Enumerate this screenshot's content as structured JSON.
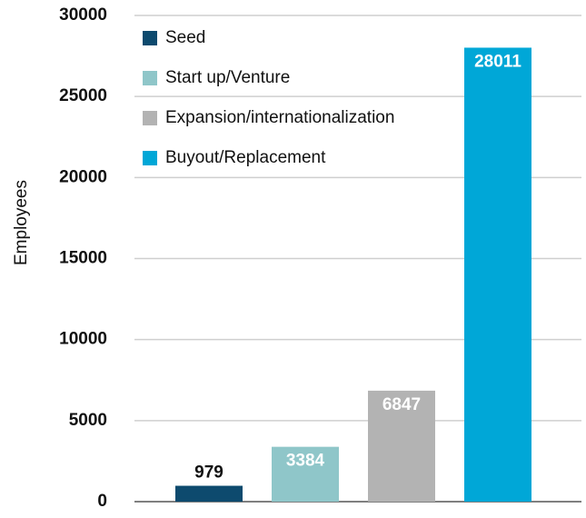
{
  "chart_data": {
    "type": "bar",
    "y_label": "Employees",
    "categories": [
      "Seed",
      "Start up/Venture",
      "Expansion/internationalization",
      "Buyout/Replacement"
    ],
    "values": [
      979,
      3384,
      6847,
      28011
    ],
    "colors": [
      "#0d4a6e",
      "#8fc6c9",
      "#b3b3b3",
      "#00a7d7"
    ],
    "ylim": [
      0,
      30000
    ],
    "yticks": [
      0,
      5000,
      10000,
      15000,
      20000,
      25000,
      30000
    ],
    "grid": true,
    "legend": "upper left"
  }
}
